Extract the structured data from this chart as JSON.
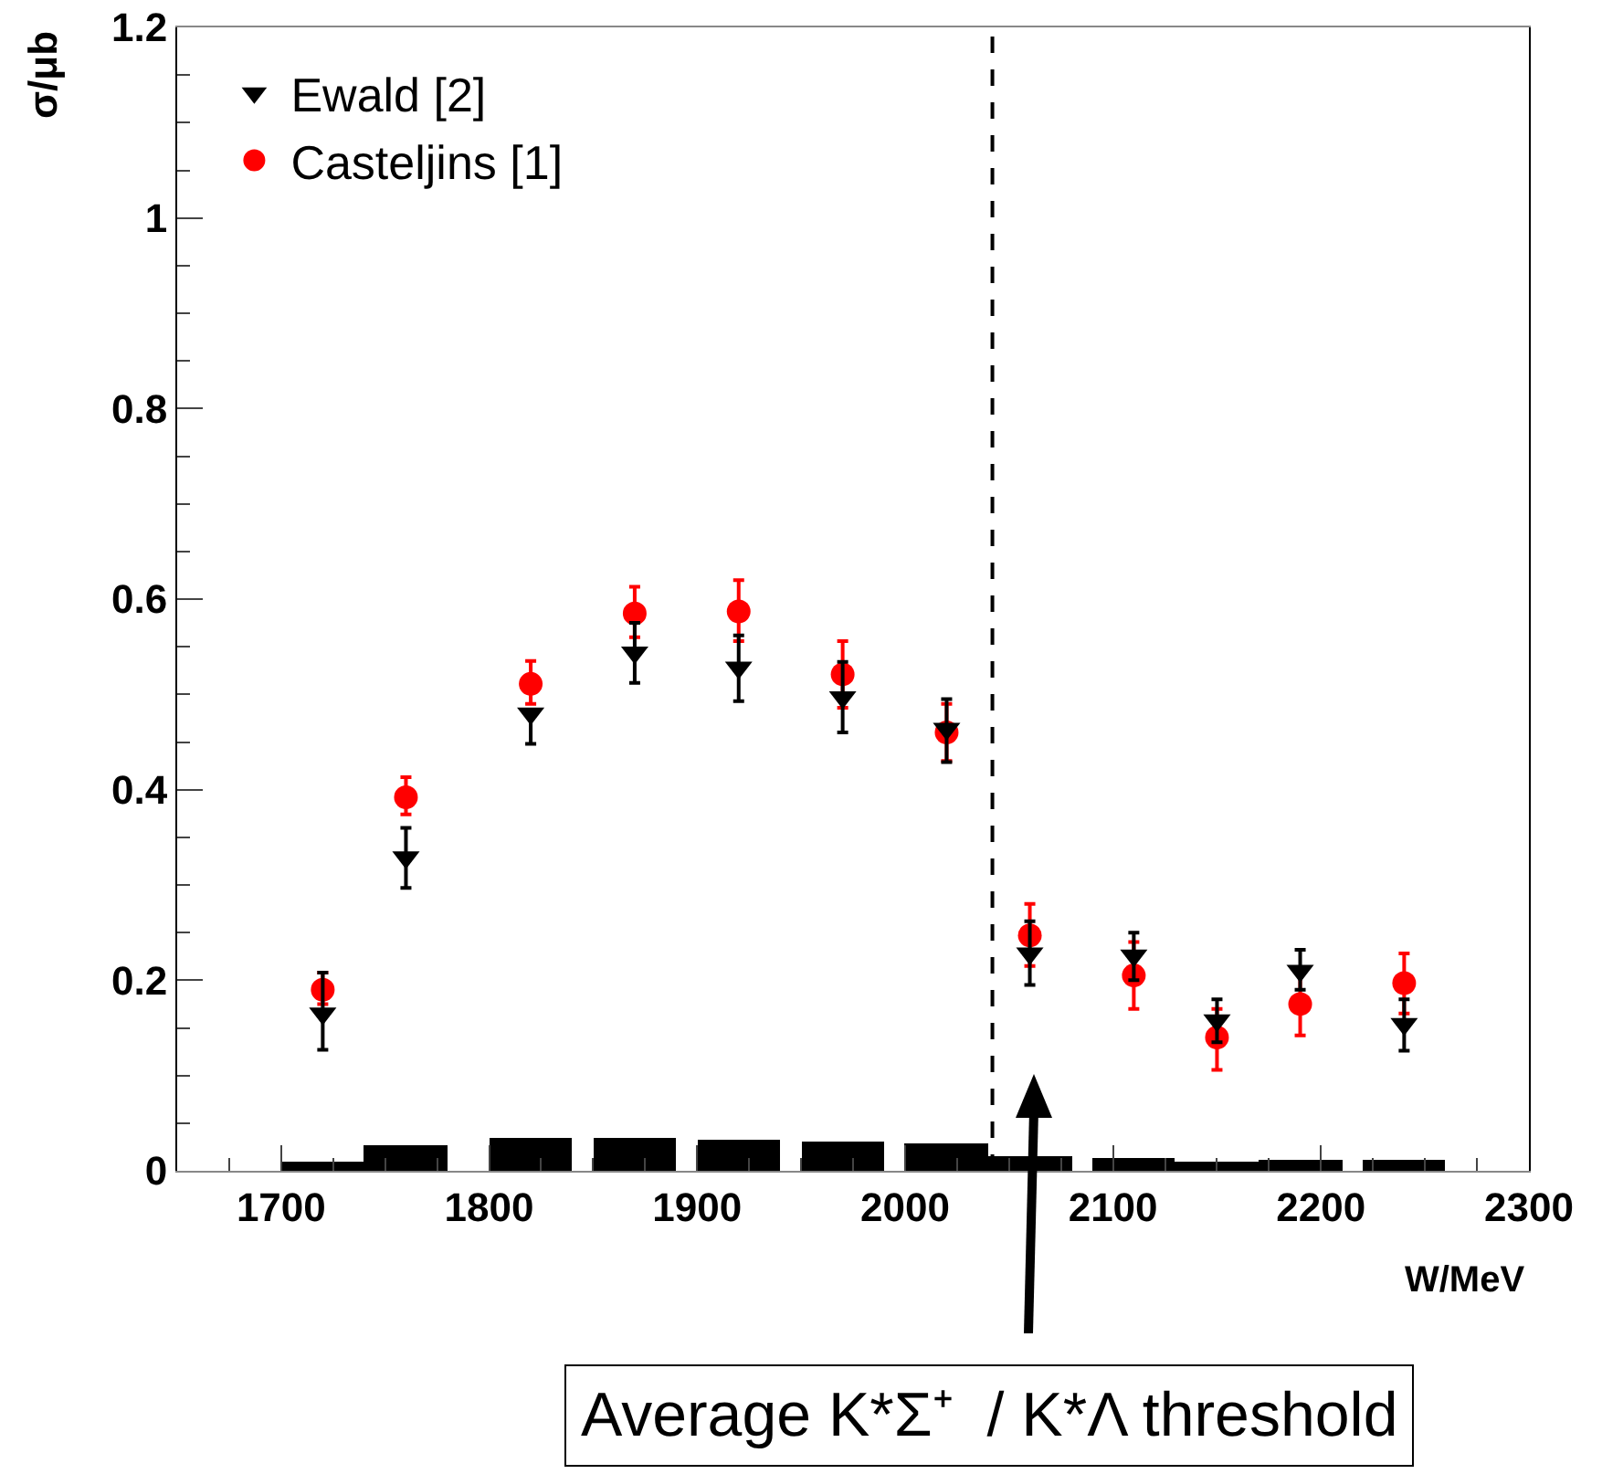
{
  "chart_data": {
    "type": "scatter",
    "xlabel": "W/MeV",
    "ylabel": "σ/μb",
    "x": [
      1720,
      1760,
      1820,
      1870,
      1920,
      1970,
      2020,
      2060,
      2110,
      2150,
      2190,
      2240
    ],
    "series": [
      {
        "name": "Ewald [2]",
        "color": "#000000",
        "marker": "triangle",
        "values": [
          0.165,
          0.329,
          0.48,
          0.544,
          0.528,
          0.497,
          0.464,
          0.228,
          0.226,
          0.158,
          0.21,
          0.154
        ],
        "errors": [
          [
            0.127,
            0.208
          ],
          [
            0.297,
            0.36
          ],
          [
            0.448,
            0.48
          ],
          [
            0.512,
            0.575
          ],
          [
            0.493,
            0.562
          ],
          [
            0.46,
            0.534
          ],
          [
            0.429,
            0.495
          ],
          [
            0.195,
            0.262
          ],
          [
            0.2,
            0.25
          ],
          [
            0.135,
            0.18
          ],
          [
            0.19,
            0.232
          ],
          [
            0.126,
            0.18
          ]
        ]
      },
      {
        "name": "Casteljins [1]",
        "color": "#ff0000",
        "marker": "circle",
        "values": [
          0.19,
          0.392,
          0.511,
          0.585,
          0.587,
          0.521,
          0.46,
          0.247,
          0.205,
          0.14,
          0.175,
          0.197
        ],
        "errors": [
          [
            0.175,
            0.208
          ],
          [
            0.374,
            0.413
          ],
          [
            0.49,
            0.535
          ],
          [
            0.56,
            0.613
          ],
          [
            0.556,
            0.62
          ],
          [
            0.486,
            0.556
          ],
          [
            0.43,
            0.49
          ],
          [
            0.215,
            0.28
          ],
          [
            0.17,
            0.24
          ],
          [
            0.106,
            0.17
          ],
          [
            0.142,
            0.21
          ],
          [
            0.165,
            0.228
          ]
        ]
      },
      {
        "type": "bar",
        "color": "#000000",
        "values": [
          0.01,
          0.026,
          0.035,
          0.035,
          0.033,
          0.031,
          0.028,
          0.015,
          0.014,
          0.009,
          0.012,
          0.012
        ]
      }
    ],
    "xlim": [
      1650,
      2300
    ],
    "xticks": [
      1700,
      1800,
      1900,
      2000,
      2100,
      2200,
      2300
    ],
    "ylim": [
      0,
      1.2
    ],
    "yticks": [
      0,
      0.2,
      0.4,
      0.6,
      0.8,
      1,
      1.2
    ],
    "ref_lines": [
      {
        "axis": "x",
        "value": 2042,
        "color": "#000000",
        "line_style": "dashed"
      }
    ],
    "annotations": [
      "Average K*Σ⁺  / K*Λ threshold"
    ],
    "legend": "top left",
    "grid": false
  }
}
